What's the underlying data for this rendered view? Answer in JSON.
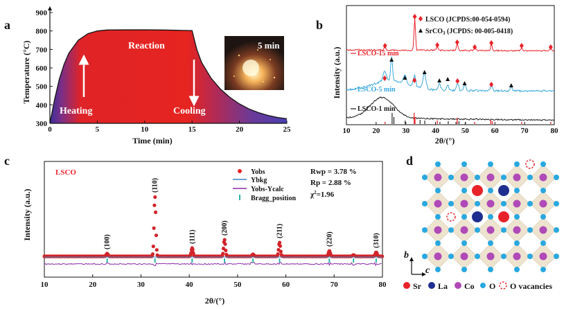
{
  "panels": {
    "a": {
      "letter": "a"
    },
    "b": {
      "letter": "b"
    },
    "c": {
      "letter": "c"
    },
    "d": {
      "letter": "d"
    }
  },
  "panel_a": {
    "inset_label": "5 min",
    "reaction_label": "Reaction",
    "heating_label": "Heating",
    "cooling_label": "Cooling"
  },
  "panel_c": {
    "sample_label": "LSCO",
    "stats": {
      "rwp": "Rwp = 3.78 %",
      "rp": "Rp = 2.88 %",
      "chi2_prefix": "χ",
      "chi2_sup": "2",
      "chi2_suffix": "=1.96"
    }
  },
  "panel_d": {
    "axis_b": "b",
    "axis_c": "c",
    "legend": [
      {
        "label": "Sr",
        "color": "#e8232a"
      },
      {
        "label": "La",
        "color": "#1f2f8f"
      },
      {
        "label": "Co",
        "color": "#b04ab8"
      },
      {
        "label": "O",
        "color": "#29a8e0"
      },
      {
        "label": "O vacancies",
        "color": "#e8232a"
      }
    ]
  },
  "chart_data": [
    {
      "type": "area",
      "id": "a",
      "xlabel": "Time (min)",
      "ylabel": "Temperature (°C)",
      "xlim": [
        0,
        25
      ],
      "ylim": [
        300,
        900
      ],
      "xticks": [
        0,
        5,
        10,
        15,
        20,
        25
      ],
      "yticks": [
        300,
        400,
        500,
        600,
        700,
        800,
        900
      ],
      "x": [
        0,
        0.5,
        1,
        1.5,
        2,
        3,
        4,
        5,
        6,
        8,
        10,
        12,
        14,
        15,
        15.5,
        16,
        17,
        18,
        19,
        20,
        21,
        22,
        23,
        24,
        25
      ],
      "y": [
        300,
        430,
        540,
        620,
        680,
        750,
        785,
        800,
        805,
        806,
        806,
        805,
        803,
        802,
        700,
        630,
        545,
        485,
        440,
        405,
        378,
        358,
        343,
        332,
        325
      ]
    },
    {
      "type": "line",
      "id": "b",
      "xlabel": "2θ/(°)",
      "ylabel": "Intensity (a.u.)",
      "xlim": [
        10,
        80
      ],
      "xticks": [
        10,
        20,
        30,
        40,
        50,
        60,
        70,
        80
      ],
      "legend": [
        "LSCO (JCPDS:00-054-0594)",
        "SrCO3 (JCPDS: 00-005-0418)"
      ],
      "series": [
        {
          "name": "LSCO-15 min",
          "color": "#e8232a",
          "peaks_2theta": [
            23,
            33,
            40.6,
            47.3,
            53.2,
            58.8,
            69,
            78.8
          ]
        },
        {
          "name": "LSCO-5 min",
          "color": "#3aa8dc",
          "peaks_2theta": [
            22.9,
            25.2,
            29.7,
            32.9,
            36.3,
            41.3,
            44.1,
            47.4,
            49.8,
            58.8,
            65.5
          ]
        },
        {
          "name": "LSCO-1 min",
          "color": "#1a1a1a",
          "peaks_2theta": [
            22
          ]
        }
      ],
      "reference_lsco": [
        23,
        32.8,
        33.1,
        40.6,
        47.3,
        53.2,
        58.6,
        59.1,
        69,
        78.8
      ],
      "reference_srco3": [
        25.2,
        25.8,
        29.6,
        34.6,
        36.2,
        41.3,
        44.1,
        46.7,
        47.7,
        49.9
      ]
    },
    {
      "type": "line",
      "id": "c",
      "xlabel": "2θ/(°)",
      "ylabel": "Intensity (a.u.)",
      "xlim": [
        10,
        80
      ],
      "xticks": [
        10,
        20,
        30,
        40,
        50,
        60,
        70,
        80
      ],
      "legend": [
        "Yobs",
        "Ybkg",
        "Yobs-Ycalc",
        "Bragg_position"
      ],
      "reflections": [
        {
          "hkl": "(100)",
          "two_theta": 23
        },
        {
          "hkl": "(110)",
          "two_theta": 32.9
        },
        {
          "hkl": "(111)",
          "two_theta": 40.6
        },
        {
          "hkl": "(200)",
          "two_theta": 47.3
        },
        {
          "hkl": "(211)",
          "two_theta": 58.7
        },
        {
          "hkl": "(220)",
          "two_theta": 69
        },
        {
          "hkl": "(310)",
          "two_theta": 78.7
        }
      ],
      "bragg_positions": [
        23,
        32.9,
        40.6,
        47.3,
        53.2,
        58.7,
        69,
        74,
        78.7
      ]
    }
  ]
}
